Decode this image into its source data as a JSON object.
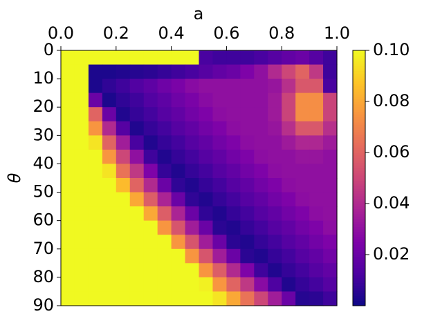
{
  "chart_data": {
    "type": "heatmap",
    "xlabel": "a",
    "ylabel": "θ",
    "xlim": [
      0,
      1
    ],
    "ylim": [
      90,
      0
    ],
    "xticks": [
      {
        "value": 0,
        "label": "0.0"
      },
      0.2,
      0.4,
      0.6,
      0.8,
      {
        "value": 1,
        "label": "1.0"
      }
    ],
    "yticks": [
      0,
      10,
      20,
      30,
      40,
      50,
      60,
      70,
      80,
      90
    ],
    "colormap": "plasma",
    "zlim": [
      0,
      0.1
    ],
    "colorbar_ticks": [
      0.02,
      0.04,
      0.06,
      0.08,
      {
        "value": 0.1,
        "label": "0.10"
      }
    ],
    "z": [
      [
        0.1,
        0.1,
        0.1,
        0.1,
        0.1,
        0.1,
        0.1,
        0.1,
        0.1,
        0.1,
        0.012,
        0.01,
        0.01,
        0.01,
        0.012,
        0.015,
        0.018,
        0.02,
        0.015,
        0.01
      ],
      [
        0.1,
        0.1,
        0.003,
        0.003,
        0.004,
        0.005,
        0.006,
        0.008,
        0.01,
        0.012,
        0.015,
        0.018,
        0.02,
        0.025,
        0.03,
        0.04,
        0.05,
        0.06,
        0.045,
        0.01
      ],
      [
        0.1,
        0.1,
        0.003,
        0.007,
        0.01,
        0.014,
        0.017,
        0.021,
        0.024,
        0.028,
        0.03,
        0.03,
        0.03,
        0.03,
        0.03,
        0.032,
        0.042,
        0.056,
        0.056,
        0.012
      ],
      [
        0.1,
        0.1,
        0.02,
        0.003,
        0.007,
        0.01,
        0.014,
        0.017,
        0.021,
        0.024,
        0.028,
        0.03,
        0.03,
        0.03,
        0.03,
        0.034,
        0.049,
        0.073,
        0.073,
        0.049
      ],
      [
        0.1,
        0.1,
        0.06,
        0.02,
        0.004,
        0.008,
        0.011,
        0.015,
        0.018,
        0.022,
        0.025,
        0.029,
        0.03,
        0.03,
        0.03,
        0.034,
        0.049,
        0.073,
        0.073,
        0.049
      ],
      [
        0.1,
        0.1,
        0.075,
        0.04,
        0.015,
        0.004,
        0.008,
        0.011,
        0.015,
        0.018,
        0.022,
        0.025,
        0.029,
        0.03,
        0.03,
        0.032,
        0.042,
        0.056,
        0.056,
        0.042
      ],
      [
        0.1,
        0.1,
        0.095,
        0.06,
        0.035,
        0.012,
        0.004,
        0.008,
        0.011,
        0.015,
        0.018,
        0.022,
        0.025,
        0.029,
        0.03,
        0.03,
        0.034,
        0.039,
        0.039,
        0.034
      ],
      [
        0.1,
        0.1,
        0.1,
        0.075,
        0.05,
        0.03,
        0.01,
        0.004,
        0.008,
        0.011,
        0.015,
        0.018,
        0.022,
        0.025,
        0.029,
        0.03,
        0.03,
        0.032,
        0.032,
        0.03
      ],
      [
        0.1,
        0.1,
        0.1,
        0.095,
        0.065,
        0.045,
        0.025,
        0.008,
        0.004,
        0.008,
        0.011,
        0.015,
        0.018,
        0.022,
        0.025,
        0.029,
        0.03,
        0.03,
        0.03,
        0.03
      ],
      [
        0.1,
        0.1,
        0.1,
        0.1,
        0.085,
        0.06,
        0.04,
        0.02,
        0.007,
        0.004,
        0.008,
        0.011,
        0.015,
        0.018,
        0.022,
        0.025,
        0.029,
        0.03,
        0.03,
        0.03
      ],
      [
        0.1,
        0.1,
        0.1,
        0.1,
        0.1,
        0.08,
        0.058,
        0.038,
        0.02,
        0.007,
        0.004,
        0.008,
        0.011,
        0.015,
        0.018,
        0.022,
        0.025,
        0.029,
        0.03,
        0.03
      ],
      [
        0.1,
        0.1,
        0.1,
        0.1,
        0.1,
        0.1,
        0.08,
        0.058,
        0.038,
        0.02,
        0.007,
        0.004,
        0.008,
        0.011,
        0.015,
        0.018,
        0.022,
        0.025,
        0.029,
        0.03
      ],
      [
        0.1,
        0.1,
        0.1,
        0.1,
        0.1,
        0.1,
        0.1,
        0.075,
        0.055,
        0.035,
        0.02,
        0.006,
        0.004,
        0.008,
        0.011,
        0.015,
        0.018,
        0.022,
        0.025,
        0.029
      ],
      [
        0.1,
        0.1,
        0.1,
        0.1,
        0.1,
        0.1,
        0.1,
        0.1,
        0.075,
        0.055,
        0.035,
        0.02,
        0.006,
        0.004,
        0.008,
        0.011,
        0.015,
        0.018,
        0.022,
        0.025
      ],
      [
        0.1,
        0.1,
        0.1,
        0.1,
        0.1,
        0.1,
        0.1,
        0.1,
        0.1,
        0.075,
        0.055,
        0.035,
        0.02,
        0.006,
        0.004,
        0.008,
        0.011,
        0.015,
        0.018,
        0.022
      ],
      [
        0.1,
        0.1,
        0.1,
        0.1,
        0.1,
        0.1,
        0.1,
        0.1,
        0.1,
        0.1,
        0.075,
        0.058,
        0.04,
        0.025,
        0.01,
        0.004,
        0.008,
        0.011,
        0.015,
        0.018
      ],
      [
        0.1,
        0.1,
        0.1,
        0.1,
        0.1,
        0.1,
        0.1,
        0.1,
        0.1,
        0.1,
        0.098,
        0.075,
        0.06,
        0.045,
        0.028,
        0.013,
        0.004,
        0.008,
        0.011,
        0.015
      ],
      [
        0.1,
        0.1,
        0.1,
        0.1,
        0.1,
        0.1,
        0.1,
        0.1,
        0.1,
        0.1,
        0.1,
        0.095,
        0.08,
        0.065,
        0.05,
        0.035,
        0.02,
        0.005,
        0.006,
        0.01
      ]
    ]
  }
}
